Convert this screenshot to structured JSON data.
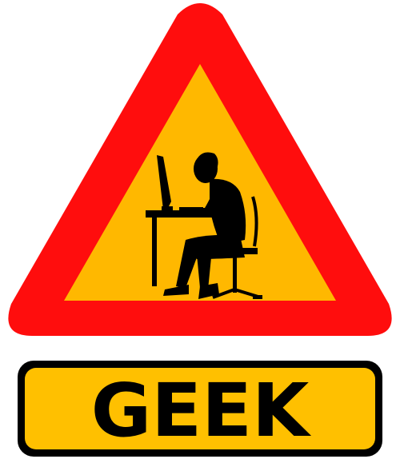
{
  "sign": {
    "label": "GEEK",
    "icon": "person-at-computer-icon"
  },
  "colors": {
    "border_red": "#ff0d0d",
    "fill_amber": "#ffb800",
    "plate_amber": "#ffc000",
    "silhouette": "#000000"
  }
}
